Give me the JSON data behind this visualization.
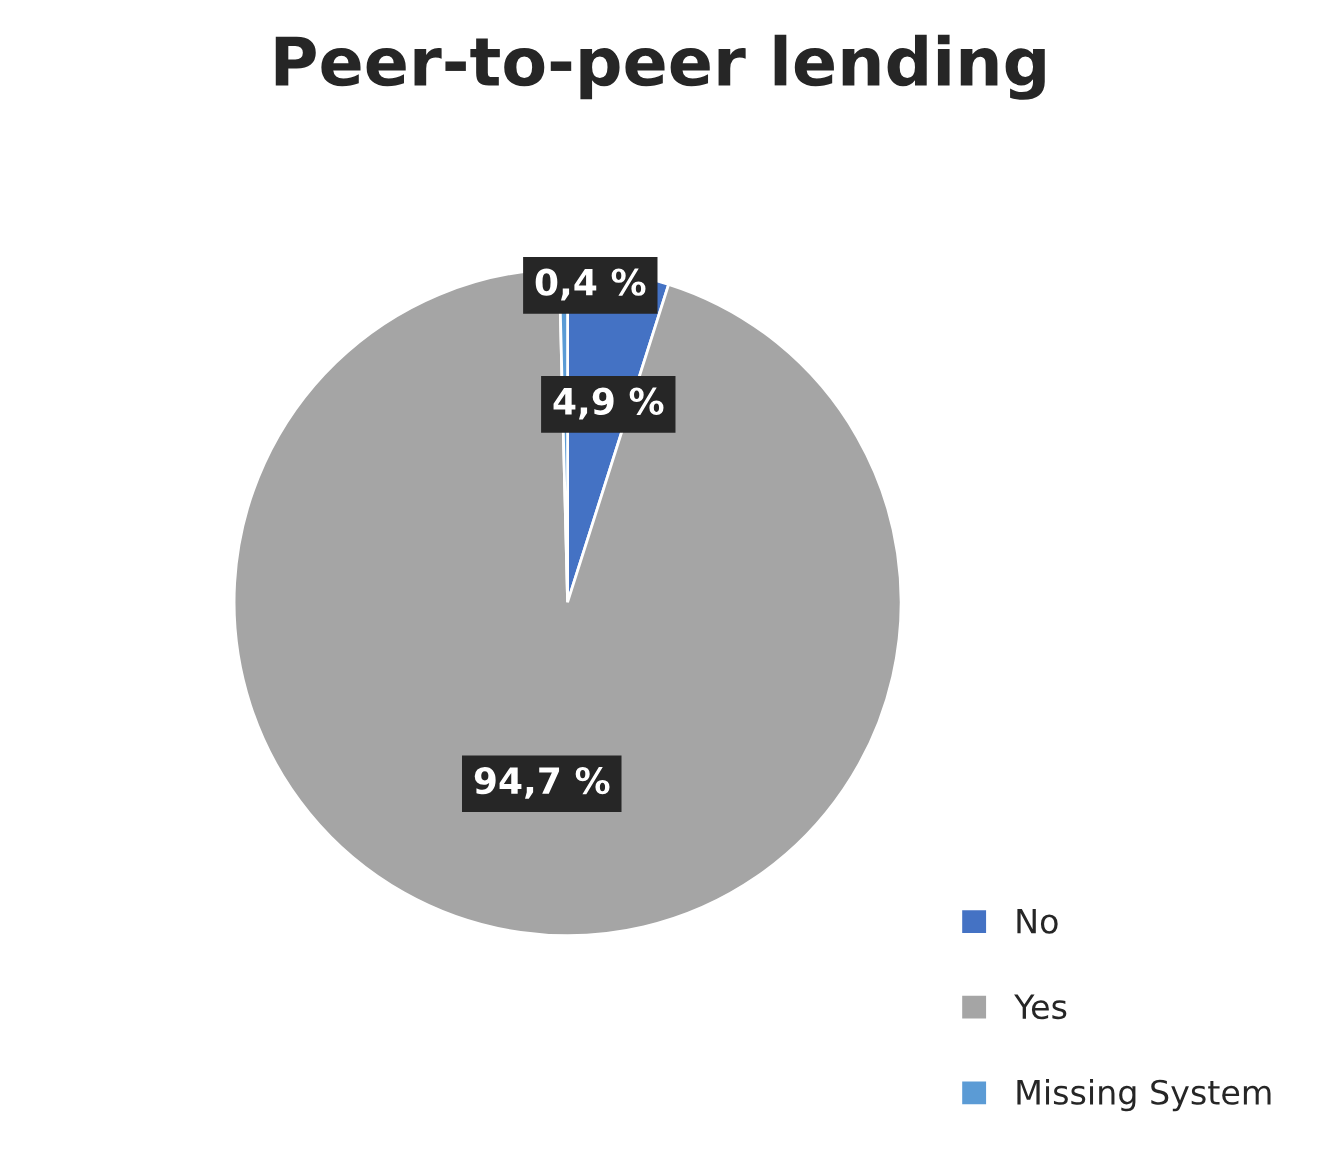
{
  "chart_data": {
    "type": "pie",
    "title": "Peer-to-peer lending",
    "categories": [
      "No",
      "Yes",
      "Missing System"
    ],
    "values": [
      4.9,
      94.7,
      0.4
    ],
    "colors": [
      "#4472c4",
      "#a5a5a5",
      "#5b9bd5"
    ],
    "value_labels": [
      "4,9 %",
      "94,7 %",
      "0,4 %"
    ],
    "legend": "bottom right"
  }
}
